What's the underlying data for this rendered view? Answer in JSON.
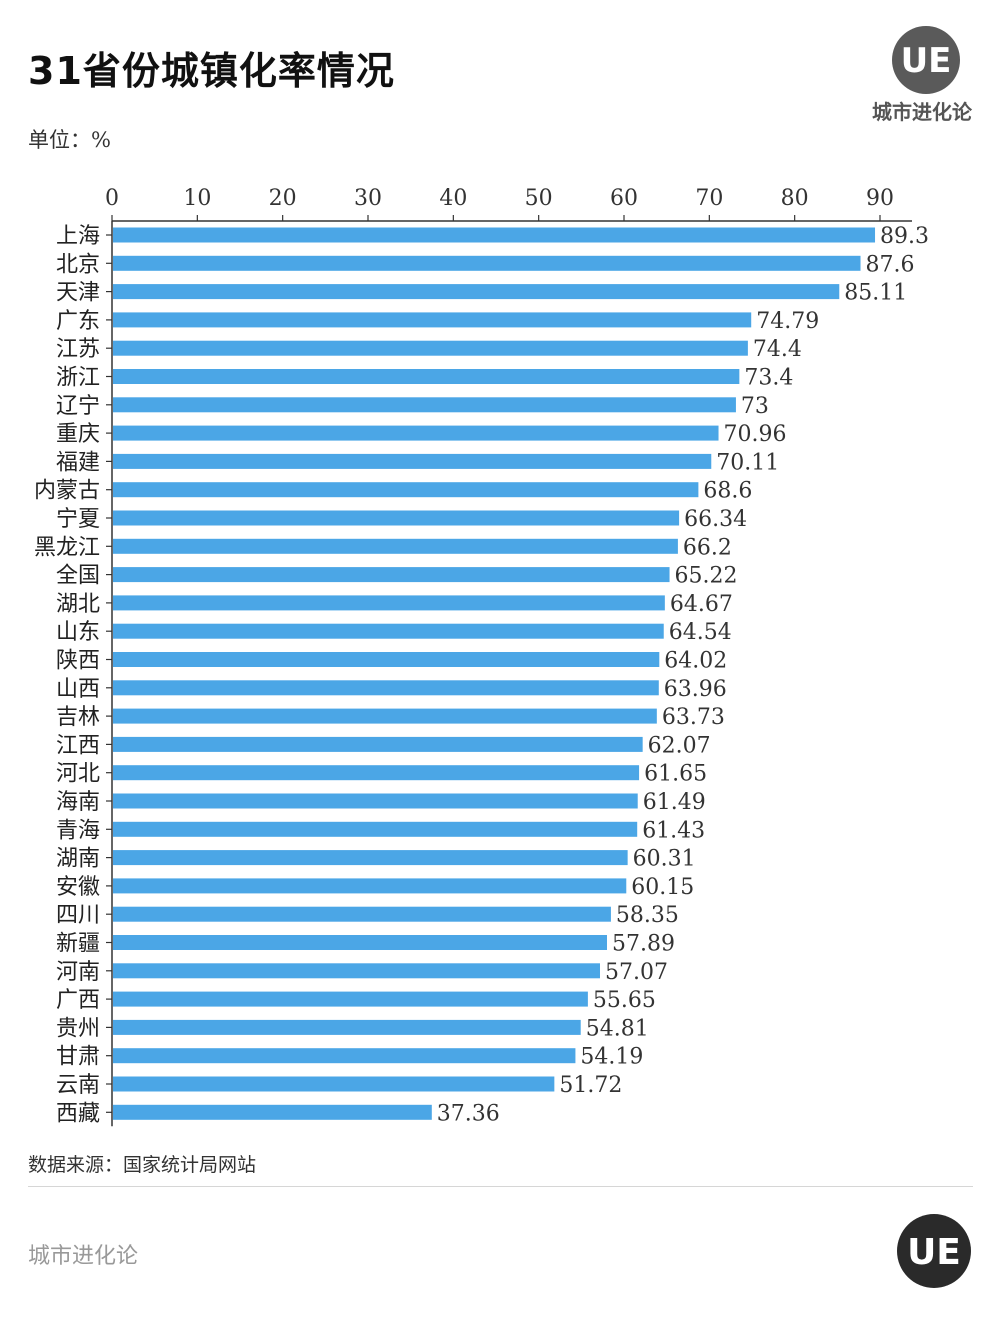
{
  "header": {
    "title": "31省份城镇化率情况",
    "unit_label": "单位：%",
    "logo_mark": "UE",
    "logo_name": "城市进化论"
  },
  "footer": {
    "source": "数据来源：国家统计局网站",
    "brand": "城市进化论",
    "logo_mark": "UE"
  },
  "colors": {
    "bar": "#4ba6e6",
    "axis": "#333333",
    "logo_bg": "#5a5a5a",
    "footer_logo_bg": "#2a2a2a"
  },
  "icons": [
    "ue-logo-icon",
    "ue-footer-logo-icon"
  ],
  "chart_data": {
    "type": "bar",
    "orientation": "horizontal",
    "xlim": [
      0,
      90
    ],
    "x_ticks": [
      0,
      10,
      20,
      30,
      40,
      50,
      60,
      70,
      80,
      90
    ],
    "x_axis_position": "top",
    "grid": false,
    "categories": [
      "上海",
      "北京",
      "天津",
      "广东",
      "江苏",
      "浙江",
      "辽宁",
      "重庆",
      "福建",
      "内蒙古",
      "宁夏",
      "黑龙江",
      "全国",
      "湖北",
      "山东",
      "陕西",
      "山西",
      "吉林",
      "江西",
      "河北",
      "海南",
      "青海",
      "湖南",
      "安徽",
      "四川",
      "新疆",
      "河南",
      "广西",
      "贵州",
      "甘肃",
      "云南",
      "西藏"
    ],
    "values": [
      89.3,
      87.6,
      85.11,
      74.79,
      74.4,
      73.4,
      73,
      70.96,
      70.11,
      68.6,
      66.34,
      66.2,
      65.22,
      64.67,
      64.54,
      64.02,
      63.96,
      63.73,
      62.07,
      61.65,
      61.49,
      61.43,
      60.31,
      60.15,
      58.35,
      57.89,
      57.07,
      55.65,
      54.81,
      54.19,
      51.72,
      37.36
    ],
    "value_labels": [
      "89.3",
      "87.6",
      "85.11",
      "74.79",
      "74.4",
      "73.4",
      "73",
      "70.96",
      "70.11",
      "68.6",
      "66.34",
      "66.2",
      "65.22",
      "64.67",
      "64.54",
      "64.02",
      "63.96",
      "63.73",
      "62.07",
      "61.65",
      "61.49",
      "61.43",
      "60.31",
      "60.15",
      "58.35",
      "57.89",
      "57.07",
      "55.65",
      "54.81",
      "54.19",
      "51.72",
      "37.36"
    ]
  }
}
